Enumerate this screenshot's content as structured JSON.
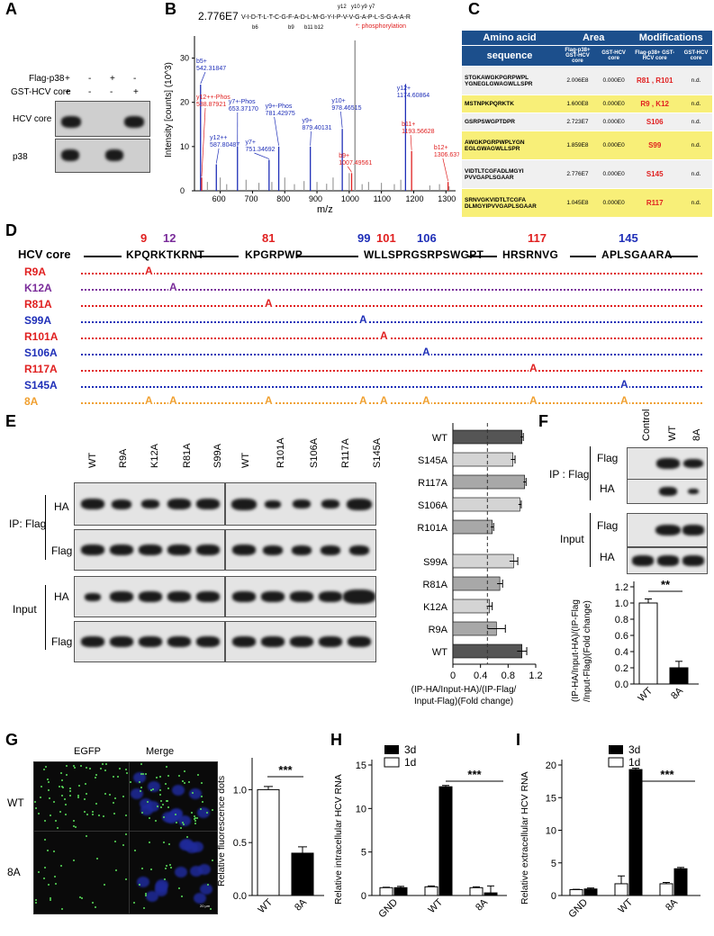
{
  "panels": {
    "A": "A",
    "B": "B",
    "C": "C",
    "D": "D",
    "E": "E",
    "F": "F",
    "G": "G",
    "H": "H",
    "I": "I"
  },
  "panelA": {
    "row_labels": [
      "Flag-p38",
      "GST-HCV core"
    ],
    "signs": [
      [
        "+",
        "-",
        "+",
        "-"
      ],
      [
        "+",
        "-",
        "-",
        "+"
      ]
    ],
    "blot_labels": [
      "HCV core",
      "p38"
    ]
  },
  "panelB": {
    "intensity": "2.776E7",
    "sequence": "V-I-D-T-L-T-C-G-F-A-D-L-M-G-Y-I-P-V-V-G-A-P-L-S-G-A-A-R",
    "legend": "*: phosphorylation",
    "ylabel": "Intensity [counts] (10^3)",
    "xlabel": "m/z",
    "frag_labels": [
      "b6",
      "b9",
      "b11 b12",
      "y12",
      "y10 y9",
      "y7"
    ],
    "xticks": [
      "600",
      "700",
      "800",
      "900",
      "1000",
      "1100",
      "1200",
      "1300"
    ],
    "yticks": [
      "0",
      "10",
      "20",
      "30"
    ],
    "peaks": [
      {
        "label": "b5+",
        "val": "542.31847",
        "color": "red"
      },
      {
        "label": "y12++-Phos",
        "val": "538.87921",
        "color": "blue"
      },
      {
        "label": "y12++",
        "val": "587.80487",
        "color": "blue"
      },
      {
        "label": "y7+-Phos",
        "val": "653.37170",
        "color": "blue"
      },
      {
        "label": "y7+",
        "val": "751.34692",
        "color": "blue"
      },
      {
        "label": "y9+-Phos",
        "val": "781.42975",
        "color": "blue"
      },
      {
        "label": "y9+",
        "val": "879.40131",
        "color": "blue"
      },
      {
        "label": "y10+",
        "val": "978.46515",
        "color": "blue"
      },
      {
        "label": "b9+",
        "val": "1007.49561",
        "color": "red"
      },
      {
        "label": "y12+",
        "val": "1174.60864",
        "color": "blue"
      },
      {
        "label": "b11+",
        "val": "1193.56628",
        "color": "red"
      },
      {
        "label": "b12+",
        "val": "1306.63721",
        "color": "red"
      }
    ]
  },
  "panelC": {
    "headers": {
      "aa": "Amino acid",
      "area": "Area",
      "mod": "Modifications",
      "seq": "sequence",
      "flag": "Flag-p38+ GST-HCV core",
      "gst": "GST-HCV core",
      "flag2": "Flag-p38+ GST-HCV core",
      "gst2": "GST-HCV core"
    },
    "rows": [
      {
        "seq": "STGKAWGKPGRPWPL YGNEGLGWAGWLLSPR",
        "a1": "2.006E8",
        "a2": "0.000E0",
        "mod": "R81 , R101",
        "gst": "n.d."
      },
      {
        "seq": "MSTNPKPQRKTK",
        "a1": "1.600E8",
        "a2": "0.000E0",
        "mod": "R9 , K12",
        "gst": "n.d."
      },
      {
        "seq": "GSRPSWGPTDPR",
        "a1": "2.723E7",
        "a2": "0.000E0",
        "mod": "S106",
        "gst": "n.d."
      },
      {
        "seq": "AWGKPGRPWPLYGN EGLGWAGWLLSPR",
        "a1": "1.859E8",
        "a2": "0.000E0",
        "mod": "S99",
        "gst": "n.d."
      },
      {
        "seq": "VIDTLTCGFADLMGYI PVVGAPLSGAAR",
        "a1": "2.776E7",
        "a2": "0.000E0",
        "mod": "S145",
        "gst": "n.d."
      },
      {
        "seq": "SRNVGKVIDTLTCGFA DLMGYIPVVGAPLSGAAR",
        "a1": "1.045E8",
        "a2": "0.000E0",
        "mod": "R117",
        "gst": "n.d."
      }
    ]
  },
  "panelD": {
    "title": "HCV core",
    "segments": [
      "KPQRKTKRNT",
      "KPGRPWP",
      "WLLSPRGSRPSWGPT",
      "HRSRNVG",
      "APLSGAARA"
    ],
    "positions": [
      "9",
      "12",
      "81",
      "99",
      "101",
      "106",
      "117",
      "145"
    ],
    "mutants": [
      "R9A",
      "K12A",
      "R81A",
      "S99A",
      "R101A",
      "S106A",
      "R117A",
      "S145A",
      "8A"
    ],
    "letter": "A"
  },
  "panelE": {
    "lanes1": [
      "WT",
      "R9A",
      "K12A",
      "R81A",
      "S99A"
    ],
    "lanes2": [
      "WT",
      "R101A",
      "S106A",
      "R117A",
      "S145A"
    ],
    "ip": "IP: Flag",
    "input": "Input",
    "ha": "HA",
    "flag": "Flag",
    "xlabel": "(IP-HA/Input-HA)/(IP-Flag/ Input-Flag)(Fold change)",
    "xticks": [
      "0",
      "0.4",
      "0.8",
      "1.2"
    ]
  },
  "panelF": {
    "lanes": [
      "Control",
      "WT",
      "8A"
    ],
    "ip": "IP : Flag",
    "input": "Input",
    "flag": "Flag",
    "ha": "HA",
    "sig": "**",
    "ylabel": "(IP-HA/Input-HA)/(IP-Flag /Input-Flag)(Fold change)",
    "yticks": [
      "0.0",
      "0.2",
      "0.4",
      "0.6",
      "0.8",
      "1.0",
      "1.2"
    ]
  },
  "panelG": {
    "cols": [
      "EGFP",
      "Merge"
    ],
    "rows": [
      "WT",
      "8A"
    ],
    "sig": "***",
    "ylabel": "Relative fluorescence dots",
    "yticks": [
      "0.0",
      "0.5",
      "1.0"
    ],
    "scale": "20 μm"
  },
  "panelH": {
    "ylabel": "Relative intracellular HCV RNA",
    "legend": [
      "3d",
      "1d"
    ],
    "sig": "***",
    "yticks": [
      "0",
      "5",
      "10",
      "15"
    ]
  },
  "panelI": {
    "ylabel": "Relative extracellular HCV RNA",
    "legend": [
      "3d",
      "1d"
    ],
    "sig": "***",
    "yticks": [
      "0",
      "5",
      "10",
      "15",
      "20"
    ]
  },
  "chart_data": [
    {
      "type": "bar",
      "id": "E",
      "orientation": "horizontal",
      "categories": [
        "WT",
        "S145A",
        "R117A",
        "S106A",
        "R101A",
        "S99A",
        "R81A",
        "K12A",
        "R9A",
        "WT"
      ],
      "values": [
        1.0,
        0.87,
        1.04,
        0.97,
        0.57,
        0.88,
        0.68,
        0.53,
        0.63,
        1.0
      ],
      "errors": [
        0.02,
        0.03,
        0.02,
        0.02,
        0.02,
        0.06,
        0.04,
        0.04,
        0.13,
        0.07
      ],
      "xlim": [
        0,
        1.2
      ],
      "ref": 0.5
    },
    {
      "type": "bar",
      "id": "F",
      "categories": [
        "WT",
        "8A"
      ],
      "values": [
        1.0,
        0.2
      ],
      "errors": [
        0.05,
        0.08
      ],
      "ylim": [
        0,
        1.2
      ]
    },
    {
      "type": "bar",
      "id": "G",
      "categories": [
        "WT",
        "8A"
      ],
      "values": [
        1.0,
        0.4
      ],
      "errors": [
        0.03,
        0.06
      ],
      "ylim": [
        0,
        1.25
      ]
    },
    {
      "type": "bar",
      "id": "H",
      "categories": [
        "GND",
        "WT",
        "8A"
      ],
      "series": [
        {
          "name": "1d",
          "values": [
            0.9,
            1.0,
            0.9
          ]
        },
        {
          "name": "3d",
          "values": [
            0.9,
            12.5,
            0.3
          ]
        }
      ],
      "ylim": [
        0,
        15
      ]
    },
    {
      "type": "bar",
      "id": "I",
      "categories": [
        "GND",
        "WT",
        "8A"
      ],
      "series": [
        {
          "name": "1d",
          "values": [
            0.9,
            1.8,
            1.8
          ]
        },
        {
          "name": "3d",
          "values": [
            1.0,
            19.3,
            4.1
          ]
        }
      ],
      "ylim": [
        0,
        20
      ]
    }
  ],
  "colors": {
    "red": "#e02020",
    "purple": "#7a2c9a",
    "blue": "#1f2fb8",
    "orange": "#f0a030",
    "navy": "#1c4f8c",
    "yellow": "#f8ef78",
    "grey": "#f0f0f0"
  }
}
